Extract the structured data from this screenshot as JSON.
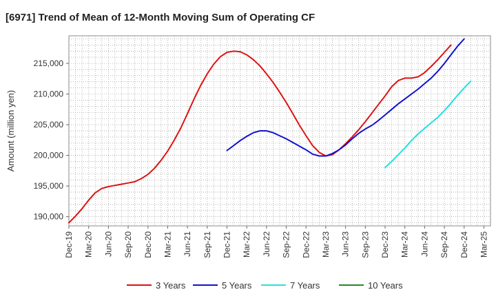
{
  "chart_data": {
    "type": "line",
    "title": "[6971]  Trend of Mean of 12-Month Moving Sum of Operating CF",
    "xlabel": "",
    "ylabel": "Amount (million yen)",
    "ylim": [
      188500,
      219500
    ],
    "yticks": [
      190000,
      195000,
      200000,
      205000,
      210000,
      215000
    ],
    "ytick_labels": [
      "190,000",
      "195,000",
      "200,000",
      "205,000",
      "210,000",
      "215,000"
    ],
    "x_start": "Dec-19",
    "x_months": 64,
    "xticks": [
      "Dec-19",
      "Mar-20",
      "Jun-20",
      "Sep-20",
      "Dec-20",
      "Mar-21",
      "Jun-21",
      "Sep-21",
      "Dec-21",
      "Mar-22",
      "Jun-22",
      "Sep-22",
      "Dec-22",
      "Mar-23",
      "Jun-23",
      "Sep-23",
      "Dec-23",
      "Mar-24",
      "Jun-24",
      "Sep-24",
      "Dec-24",
      "Mar-25"
    ],
    "grid": true,
    "legend_position": "bottom",
    "series": [
      {
        "name": "3 Years",
        "color": "#dd1111",
        "start_index": 0,
        "values": [
          189000,
          190100,
          191300,
          192700,
          193900,
          194600,
          194900,
          195100,
          195300,
          195500,
          195700,
          196200,
          196900,
          197900,
          199200,
          200700,
          202500,
          204500,
          206800,
          209200,
          211400,
          213300,
          214900,
          216100,
          216800,
          217000,
          216900,
          216400,
          215600,
          214600,
          213300,
          211900,
          210300,
          208600,
          206800,
          204900,
          203200,
          201600,
          200500,
          199900,
          200100,
          200900,
          201900,
          203000,
          204200,
          205500,
          206900,
          208300,
          209700,
          211200,
          212200,
          212600,
          212600,
          212800,
          213500,
          214500,
          215600,
          216800,
          218000
        ]
      },
      {
        "name": "5 Years",
        "color": "#1111cc",
        "start_index": 24,
        "values": [
          200800,
          201600,
          202400,
          203100,
          203700,
          204000,
          204000,
          203700,
          203200,
          202700,
          202100,
          201500,
          200900,
          200200,
          199900,
          199900,
          200300,
          200900,
          201700,
          202700,
          203600,
          204300,
          204900,
          205700,
          206600,
          207500,
          208400,
          209200,
          210000,
          210800,
          211700,
          212600,
          213700,
          215000,
          216400,
          217800,
          219000
        ]
      },
      {
        "name": "7 Years",
        "color": "#22e0e0",
        "start_index": 48,
        "values": [
          198000,
          199000,
          200100,
          201200,
          202400,
          203500,
          204400,
          205300,
          206200,
          207300,
          208500,
          209800,
          211000,
          212100
        ]
      },
      {
        "name": "10 Years",
        "color": "#228822",
        "start_index": 0,
        "values": []
      }
    ]
  }
}
